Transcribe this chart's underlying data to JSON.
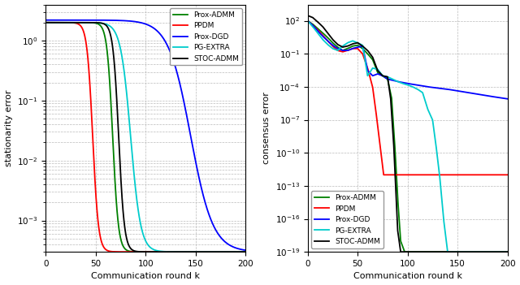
{
  "xlabel": "Communication round k",
  "ylabel_left": "stationarity error",
  "ylabel_right": "consensus error",
  "xlim": [
    0,
    200
  ],
  "ylim_left": [
    0.0003,
    4
  ],
  "ylim_right": [
    1e-19,
    3000.0
  ],
  "x_ticks": [
    0,
    50,
    100,
    150,
    200
  ],
  "colors": {
    "Prox-ADMM": "#008000",
    "PPDM": "#ff0000",
    "Prox-DGD": "#0000ff",
    "PG-EXTRA": "#00cccc",
    "STOC-ADMM": "#000000"
  },
  "background_color": "#ffffff",
  "grid_color": "#bbbbbb"
}
